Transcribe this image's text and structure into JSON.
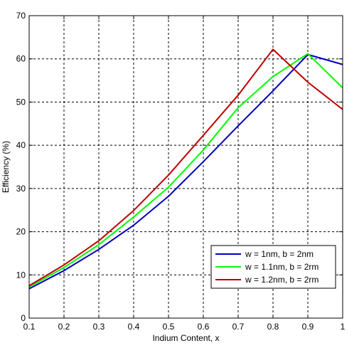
{
  "chart_data": {
    "type": "line",
    "title": "",
    "xlabel": "Indium Content, x",
    "ylabel": "Efficiency (%)",
    "xlim": [
      0.1,
      1
    ],
    "ylim": [
      0,
      70
    ],
    "xticks": [
      0.1,
      0.2,
      0.3,
      0.4,
      0.5,
      0.6,
      0.7,
      0.8,
      0.9,
      1
    ],
    "xtick_labels": [
      "0.1",
      "0.2",
      "0.3",
      "0.4",
      "0.5",
      "0.6",
      "0.7",
      "0.8",
      "0.9",
      "1"
    ],
    "yticks": [
      0,
      10,
      20,
      30,
      40,
      50,
      60,
      70
    ],
    "ytick_labels": [
      "0",
      "10",
      "20",
      "30",
      "40",
      "50",
      "60",
      "70"
    ],
    "grid": true,
    "grid_style": "dashed",
    "legend_position": "bottom-right",
    "series": [
      {
        "name": "w = 1nm, b = 2nm",
        "color": "#0000bf",
        "x": [
          0.1,
          0.2,
          0.3,
          0.4,
          0.5,
          0.6,
          0.7,
          0.8,
          0.9,
          1.0
        ],
        "y": [
          6.8,
          11.0,
          15.9,
          21.5,
          28.2,
          36.2,
          44.5,
          52.6,
          61.0,
          58.7
        ]
      },
      {
        "name": "w = 1.1nm, b = 2rm",
        "color": "#00ff00",
        "x": [
          0.1,
          0.2,
          0.3,
          0.4,
          0.5,
          0.6,
          0.7,
          0.8,
          0.9,
          1.0
        ],
        "y": [
          7.2,
          11.7,
          17.0,
          23.4,
          30.3,
          38.9,
          48.7,
          55.9,
          61.2,
          53.3
        ]
      },
      {
        "name": "w = 1.2nm, b = 2rm",
        "color": "#bf0000",
        "x": [
          0.1,
          0.2,
          0.3,
          0.4,
          0.5,
          0.6,
          0.7,
          0.8,
          0.9,
          1.0
        ],
        "y": [
          7.5,
          12.3,
          17.9,
          24.9,
          33.1,
          42.3,
          51.6,
          62.2,
          54.6,
          48.3
        ]
      }
    ]
  }
}
